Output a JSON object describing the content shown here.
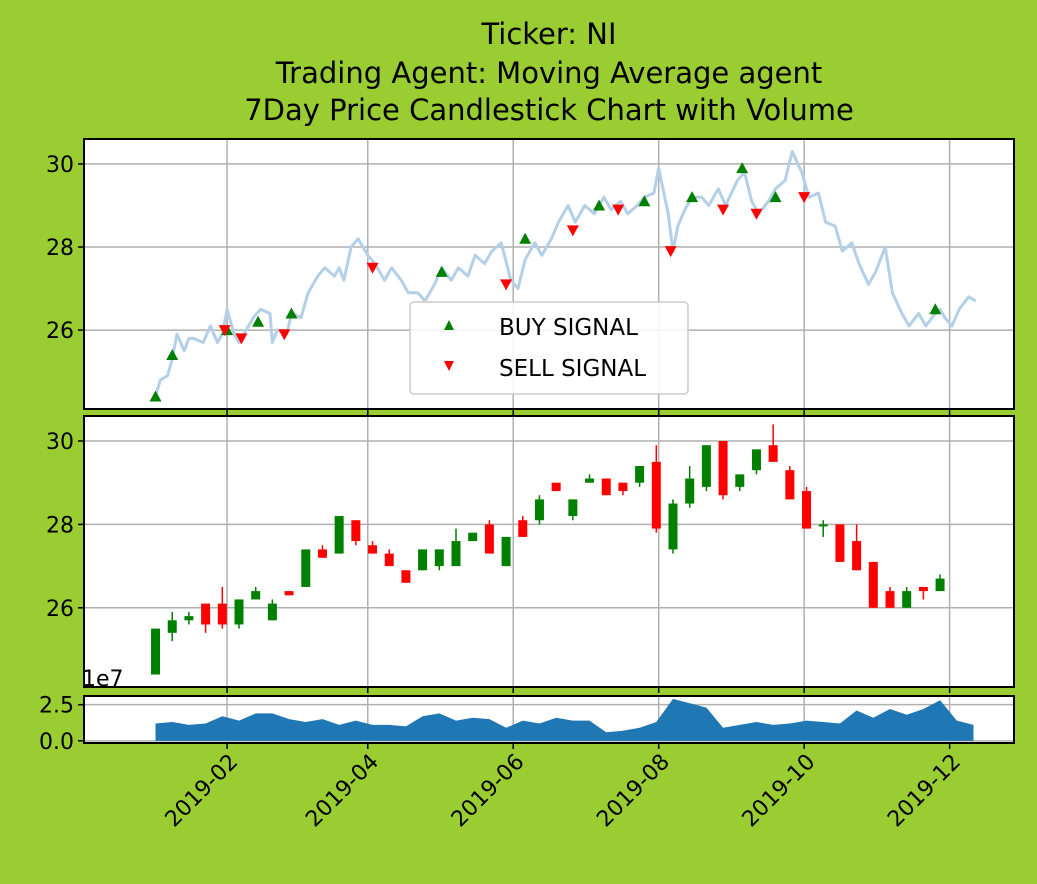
{
  "title_lines": [
    "Ticker: NI",
    "Trading Agent: Moving Average agent",
    "7Day Price Candlestick Chart with Volume"
  ],
  "colors": {
    "background": "#9acd32",
    "price_line": "#b4d0e8",
    "buy": "#008000",
    "sell": "#ff0000",
    "volume": "#1f77b4",
    "grid": "#b0b0b0"
  },
  "chart_data": [
    {
      "type": "line",
      "panel": "price",
      "ylim": [
        24.1,
        30.6
      ],
      "yticks": [
        26,
        28,
        30
      ],
      "xlim": [
        "2018-12-03",
        "2019-12-28"
      ],
      "grid": true,
      "legend": {
        "position": "lower-center",
        "entries": [
          "BUY SIGNAL",
          "SELL SIGNAL"
        ]
      },
      "price": [
        [
          "2019-01-02",
          24.4
        ],
        [
          "2019-01-04",
          24.8
        ],
        [
          "2019-01-07",
          24.9
        ],
        [
          "2019-01-09",
          25.3
        ],
        [
          "2019-01-11",
          25.9
        ],
        [
          "2019-01-14",
          25.5
        ],
        [
          "2019-01-16",
          25.8
        ],
        [
          "2019-01-18",
          25.8
        ],
        [
          "2019-01-22",
          25.7
        ],
        [
          "2019-01-25",
          26.1
        ],
        [
          "2019-01-28",
          25.7
        ],
        [
          "2019-01-30",
          25.9
        ],
        [
          "2019-02-01",
          26.5
        ],
        [
          "2019-02-04",
          25.9
        ],
        [
          "2019-02-06",
          25.7
        ],
        [
          "2019-02-08",
          25.9
        ],
        [
          "2019-02-12",
          26.3
        ],
        [
          "2019-02-15",
          26.5
        ],
        [
          "2019-02-19",
          26.4
        ],
        [
          "2019-02-20",
          25.7
        ],
        [
          "2019-02-22",
          26.0
        ],
        [
          "2019-02-26",
          25.9
        ],
        [
          "2019-02-28",
          26.4
        ],
        [
          "2019-03-04",
          26.3
        ],
        [
          "2019-03-07",
          26.9
        ],
        [
          "2019-03-11",
          27.3
        ],
        [
          "2019-03-14",
          27.5
        ],
        [
          "2019-03-18",
          27.3
        ],
        [
          "2019-03-20",
          27.5
        ],
        [
          "2019-03-22",
          27.2
        ],
        [
          "2019-03-25",
          28.0
        ],
        [
          "2019-03-28",
          28.2
        ],
        [
          "2019-04-01",
          27.8
        ],
        [
          "2019-04-04",
          27.6
        ],
        [
          "2019-04-08",
          27.2
        ],
        [
          "2019-04-11",
          27.5
        ],
        [
          "2019-04-15",
          27.2
        ],
        [
          "2019-04-18",
          26.9
        ],
        [
          "2019-04-22",
          26.9
        ],
        [
          "2019-04-25",
          26.7
        ],
        [
          "2019-04-29",
          27.1
        ],
        [
          "2019-05-02",
          27.5
        ],
        [
          "2019-05-06",
          27.2
        ],
        [
          "2019-05-09",
          27.5
        ],
        [
          "2019-05-13",
          27.3
        ],
        [
          "2019-05-16",
          27.8
        ],
        [
          "2019-05-20",
          27.6
        ],
        [
          "2019-05-23",
          27.9
        ],
        [
          "2019-05-27",
          28.1
        ],
        [
          "2019-05-31",
          27.2
        ],
        [
          "2019-06-03",
          27.0
        ],
        [
          "2019-06-06",
          27.7
        ],
        [
          "2019-06-10",
          28.1
        ],
        [
          "2019-06-13",
          27.8
        ],
        [
          "2019-06-17",
          28.2
        ],
        [
          "2019-06-20",
          28.6
        ],
        [
          "2019-06-24",
          29.0
        ],
        [
          "2019-06-27",
          28.6
        ],
        [
          "2019-07-01",
          29.0
        ],
        [
          "2019-07-05",
          28.8
        ],
        [
          "2019-07-09",
          29.2
        ],
        [
          "2019-07-12",
          28.9
        ],
        [
          "2019-07-16",
          29.1
        ],
        [
          "2019-07-19",
          28.8
        ],
        [
          "2019-07-23",
          29.0
        ],
        [
          "2019-07-26",
          29.2
        ],
        [
          "2019-07-30",
          29.3
        ],
        [
          "2019-08-01",
          29.9
        ],
        [
          "2019-08-05",
          28.8
        ],
        [
          "2019-08-07",
          27.9
        ],
        [
          "2019-08-09",
          28.5
        ],
        [
          "2019-08-12",
          28.9
        ],
        [
          "2019-08-15",
          29.2
        ],
        [
          "2019-08-19",
          29.2
        ],
        [
          "2019-08-22",
          29.0
        ],
        [
          "2019-08-26",
          29.4
        ],
        [
          "2019-08-29",
          29.0
        ],
        [
          "2019-09-03",
          29.6
        ],
        [
          "2019-09-06",
          29.8
        ],
        [
          "2019-09-09",
          29.1
        ],
        [
          "2019-09-12",
          28.8
        ],
        [
          "2019-09-16",
          29.1
        ],
        [
          "2019-09-19",
          29.4
        ],
        [
          "2019-09-23",
          29.6
        ],
        [
          "2019-09-26",
          30.3
        ],
        [
          "2019-09-30",
          29.8
        ],
        [
          "2019-10-03",
          29.2
        ],
        [
          "2019-10-07",
          29.3
        ],
        [
          "2019-10-10",
          28.6
        ],
        [
          "2019-10-14",
          28.5
        ],
        [
          "2019-10-17",
          27.9
        ],
        [
          "2019-10-21",
          28.1
        ],
        [
          "2019-10-24",
          27.6
        ],
        [
          "2019-10-28",
          27.1
        ],
        [
          "2019-10-31",
          27.4
        ],
        [
          "2019-11-04",
          28.0
        ],
        [
          "2019-11-07",
          26.9
        ],
        [
          "2019-11-11",
          26.4
        ],
        [
          "2019-11-14",
          26.1
        ],
        [
          "2019-11-18",
          26.4
        ],
        [
          "2019-11-21",
          26.1
        ],
        [
          "2019-11-25",
          26.4
        ],
        [
          "2019-11-27",
          26.5
        ],
        [
          "2019-11-29",
          26.3
        ],
        [
          "2019-12-02",
          26.1
        ],
        [
          "2019-12-05",
          26.5
        ],
        [
          "2019-12-09",
          26.8
        ],
        [
          "2019-12-12",
          26.7
        ]
      ],
      "buy_signals": [
        [
          "2019-01-02",
          24.4
        ],
        [
          "2019-01-09",
          25.4
        ],
        [
          "2019-02-01",
          26.0
        ],
        [
          "2019-02-14",
          26.2
        ],
        [
          "2019-02-28",
          26.4
        ],
        [
          "2019-05-02",
          27.4
        ],
        [
          "2019-06-06",
          28.2
        ],
        [
          "2019-07-07",
          29.0
        ],
        [
          "2019-07-26",
          29.1
        ],
        [
          "2019-08-15",
          29.2
        ],
        [
          "2019-09-05",
          29.9
        ],
        [
          "2019-09-19",
          29.2
        ],
        [
          "2019-11-25",
          26.5
        ]
      ],
      "sell_signals": [
        [
          "2019-01-31",
          26.0
        ],
        [
          "2019-02-07",
          25.8
        ],
        [
          "2019-02-25",
          25.9
        ],
        [
          "2019-04-03",
          27.5
        ],
        [
          "2019-05-29",
          27.1
        ],
        [
          "2019-06-26",
          28.4
        ],
        [
          "2019-07-15",
          28.9
        ],
        [
          "2019-08-06",
          27.9
        ],
        [
          "2019-08-28",
          28.9
        ],
        [
          "2019-09-11",
          28.8
        ],
        [
          "2019-10-01",
          29.2
        ]
      ]
    },
    {
      "type": "candlestick",
      "panel": "candles",
      "ylim": [
        24.1,
        30.6
      ],
      "yticks": [
        26,
        28,
        30
      ],
      "xlim": [
        "2018-12-03",
        "2019-12-28"
      ],
      "grid": true,
      "candles": [
        [
          "2019-01-02",
          24.4,
          25.5,
          24.4,
          25.5
        ],
        [
          "2019-01-09",
          25.4,
          25.9,
          25.2,
          25.7
        ],
        [
          "2019-01-16",
          25.7,
          25.9,
          25.6,
          25.8
        ],
        [
          "2019-01-23",
          26.1,
          26.1,
          25.4,
          25.6
        ],
        [
          "2019-01-30",
          26.1,
          26.5,
          25.5,
          25.6
        ],
        [
          "2019-02-06",
          25.6,
          26.2,
          25.5,
          26.2
        ],
        [
          "2019-02-13",
          26.2,
          26.5,
          26.2,
          26.4
        ],
        [
          "2019-02-20",
          25.7,
          26.2,
          25.7,
          26.1
        ],
        [
          "2019-02-27",
          26.4,
          26.4,
          26.3,
          26.3
        ],
        [
          "2019-03-06",
          26.5,
          27.4,
          26.5,
          27.4
        ],
        [
          "2019-03-13",
          27.4,
          27.5,
          27.2,
          27.2
        ],
        [
          "2019-03-20",
          27.3,
          28.2,
          27.3,
          28.2
        ],
        [
          "2019-03-27",
          28.1,
          28.1,
          27.5,
          27.6
        ],
        [
          "2019-04-03",
          27.5,
          27.6,
          27.3,
          27.3
        ],
        [
          "2019-04-10",
          27.3,
          27.4,
          27.0,
          27.0
        ],
        [
          "2019-04-17",
          26.9,
          26.9,
          26.6,
          26.6
        ],
        [
          "2019-04-24",
          26.9,
          27.4,
          26.9,
          27.4
        ],
        [
          "2019-05-01",
          27.0,
          27.4,
          26.9,
          27.4
        ],
        [
          "2019-05-08",
          27.0,
          27.9,
          27.0,
          27.6
        ],
        [
          "2019-05-15",
          27.6,
          27.8,
          27.6,
          27.8
        ],
        [
          "2019-05-22",
          28.0,
          28.1,
          27.3,
          27.3
        ],
        [
          "2019-05-29",
          27.0,
          27.7,
          27.0,
          27.7
        ],
        [
          "2019-06-05",
          28.1,
          28.2,
          27.7,
          27.7
        ],
        [
          "2019-06-12",
          28.1,
          28.7,
          28.0,
          28.6
        ],
        [
          "2019-06-19",
          29.0,
          29.0,
          28.8,
          28.8
        ],
        [
          "2019-06-26",
          28.2,
          28.6,
          28.1,
          28.6
        ],
        [
          "2019-07-03",
          29.0,
          29.2,
          29.0,
          29.1
        ],
        [
          "2019-07-10",
          29.1,
          29.1,
          28.7,
          28.7
        ],
        [
          "2019-07-17",
          29.0,
          29.0,
          28.7,
          28.8
        ],
        [
          "2019-07-24",
          29.0,
          29.4,
          28.9,
          29.4
        ],
        [
          "2019-07-31",
          29.5,
          29.9,
          27.8,
          27.9
        ],
        [
          "2019-08-07",
          27.4,
          28.6,
          27.3,
          28.5
        ],
        [
          "2019-08-14",
          28.5,
          29.4,
          28.4,
          29.1
        ],
        [
          "2019-08-21",
          28.9,
          29.9,
          28.8,
          29.9
        ],
        [
          "2019-08-28",
          30.0,
          30.0,
          28.6,
          28.7
        ],
        [
          "2019-09-04",
          28.9,
          29.2,
          28.8,
          29.2
        ],
        [
          "2019-09-11",
          29.3,
          29.8,
          29.2,
          29.8
        ],
        [
          "2019-09-18",
          29.9,
          30.4,
          29.5,
          29.5
        ],
        [
          "2019-09-25",
          29.3,
          29.4,
          28.6,
          28.6
        ],
        [
          "2019-10-02",
          28.8,
          28.9,
          27.9,
          27.9
        ],
        [
          "2019-10-09",
          28.0,
          28.1,
          27.7,
          28.0
        ],
        [
          "2019-10-16",
          28.0,
          28.0,
          27.1,
          27.1
        ],
        [
          "2019-10-23",
          27.6,
          28.0,
          26.9,
          26.9
        ],
        [
          "2019-10-30",
          27.1,
          27.1,
          26.0,
          26.0
        ],
        [
          "2019-11-06",
          26.4,
          26.5,
          26.0,
          26.0
        ],
        [
          "2019-11-13",
          26.0,
          26.5,
          26.0,
          26.4
        ],
        [
          "2019-11-20",
          26.5,
          26.5,
          26.2,
          26.4
        ],
        [
          "2019-11-27",
          26.4,
          26.8,
          26.4,
          26.7
        ]
      ]
    },
    {
      "type": "area",
      "panel": "volume",
      "scale_label": "1e7",
      "ylim": [
        -0.15,
        3.1
      ],
      "yticks": [
        0.0,
        2.5
      ],
      "ytick_labels": [
        "0.0",
        "2.5"
      ],
      "xlim": [
        "2018-12-03",
        "2019-12-28"
      ],
      "xticks": [
        "2019-02-01",
        "2019-04-01",
        "2019-06-01",
        "2019-08-01",
        "2019-10-01",
        "2019-12-01"
      ],
      "xtick_labels": [
        "2019-02",
        "2019-04",
        "2019-06",
        "2019-08",
        "2019-10",
        "2019-12"
      ],
      "grid": true,
      "volume": [
        [
          "2019-01-02",
          1.2
        ],
        [
          "2019-01-09",
          1.3
        ],
        [
          "2019-01-16",
          1.1
        ],
        [
          "2019-01-23",
          1.2
        ],
        [
          "2019-01-30",
          1.7
        ],
        [
          "2019-02-06",
          1.4
        ],
        [
          "2019-02-13",
          1.9
        ],
        [
          "2019-02-20",
          1.9
        ],
        [
          "2019-02-27",
          1.5
        ],
        [
          "2019-03-06",
          1.3
        ],
        [
          "2019-03-13",
          1.5
        ],
        [
          "2019-03-20",
          1.1
        ],
        [
          "2019-03-27",
          1.4
        ],
        [
          "2019-04-03",
          1.1
        ],
        [
          "2019-04-10",
          1.1
        ],
        [
          "2019-04-17",
          1.0
        ],
        [
          "2019-04-24",
          1.7
        ],
        [
          "2019-05-01",
          1.9
        ],
        [
          "2019-05-08",
          1.4
        ],
        [
          "2019-05-15",
          1.6
        ],
        [
          "2019-05-22",
          1.5
        ],
        [
          "2019-05-29",
          0.9
        ],
        [
          "2019-06-05",
          1.4
        ],
        [
          "2019-06-12",
          1.2
        ],
        [
          "2019-06-19",
          1.6
        ],
        [
          "2019-06-26",
          1.4
        ],
        [
          "2019-07-03",
          1.4
        ],
        [
          "2019-07-10",
          0.6
        ],
        [
          "2019-07-17",
          0.7
        ],
        [
          "2019-07-24",
          0.9
        ],
        [
          "2019-07-31",
          1.3
        ],
        [
          "2019-08-07",
          2.9
        ],
        [
          "2019-08-14",
          2.6
        ],
        [
          "2019-08-21",
          2.3
        ],
        [
          "2019-08-28",
          0.9
        ],
        [
          "2019-09-04",
          1.1
        ],
        [
          "2019-09-11",
          1.3
        ],
        [
          "2019-09-18",
          1.1
        ],
        [
          "2019-09-25",
          1.2
        ],
        [
          "2019-10-02",
          1.4
        ],
        [
          "2019-10-09",
          1.3
        ],
        [
          "2019-10-16",
          1.2
        ],
        [
          "2019-10-23",
          2.1
        ],
        [
          "2019-10-30",
          1.6
        ],
        [
          "2019-11-06",
          2.2
        ],
        [
          "2019-11-13",
          1.8
        ],
        [
          "2019-11-20",
          2.2
        ],
        [
          "2019-11-27",
          2.8
        ],
        [
          "2019-12-04",
          1.4
        ],
        [
          "2019-12-11",
          1.1
        ]
      ]
    }
  ]
}
